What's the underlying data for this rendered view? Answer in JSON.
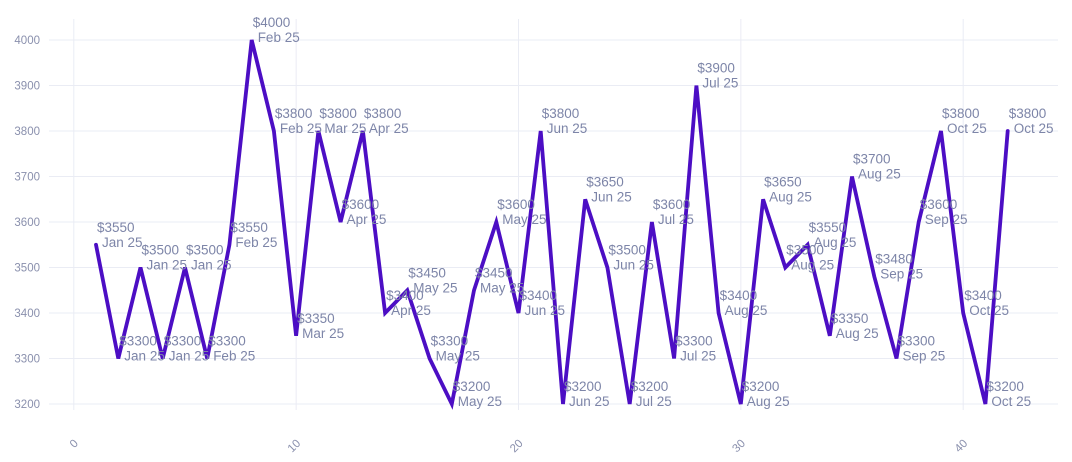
{
  "chart_data": {
    "type": "line",
    "title": "",
    "xlabel": "",
    "ylabel": "",
    "legend": "none",
    "grid": true,
    "xaxis": {
      "ticks": [
        0,
        10,
        20,
        30,
        40
      ],
      "range": [
        -1,
        44
      ]
    },
    "yaxis": {
      "ticks": [
        3200,
        3300,
        3400,
        3500,
        3600,
        3700,
        3800,
        3900,
        4000
      ],
      "range": [
        3110,
        4070
      ]
    },
    "series_name": "price",
    "points": [
      {
        "x": 1,
        "price": 3550,
        "period": "Jan 25"
      },
      {
        "x": 2,
        "price": 3300,
        "period": "Jan 25"
      },
      {
        "x": 3,
        "price": 3500,
        "period": "Jan 25"
      },
      {
        "x": 4,
        "price": 3300,
        "period": "Jan 25"
      },
      {
        "x": 5,
        "price": 3500,
        "period": "Jan 25"
      },
      {
        "x": 6,
        "price": 3300,
        "period": "Feb 25"
      },
      {
        "x": 7,
        "price": 3550,
        "period": "Feb 25"
      },
      {
        "x": 8,
        "price": 4000,
        "period": "Feb 25"
      },
      {
        "x": 9,
        "price": 3800,
        "period": "Feb 25"
      },
      {
        "x": 10,
        "price": 3350,
        "period": "Mar 25"
      },
      {
        "x": 11,
        "price": 3800,
        "period": "Mar 25"
      },
      {
        "x": 12,
        "price": 3600,
        "period": "Apr 25"
      },
      {
        "x": 13,
        "price": 3800,
        "period": "Apr 25"
      },
      {
        "x": 14,
        "price": 3400,
        "period": "Apr 25"
      },
      {
        "x": 15,
        "price": 3450,
        "period": "May 25"
      },
      {
        "x": 16,
        "price": 3300,
        "period": "May 25"
      },
      {
        "x": 17,
        "price": 3200,
        "period": "May 25"
      },
      {
        "x": 18,
        "price": 3450,
        "period": "May 25"
      },
      {
        "x": 19,
        "price": 3600,
        "period": "May 25"
      },
      {
        "x": 20,
        "price": 3400,
        "period": "Jun 25"
      },
      {
        "x": 21,
        "price": 3800,
        "period": "Jun 25"
      },
      {
        "x": 22,
        "price": 3200,
        "period": "Jun 25"
      },
      {
        "x": 23,
        "price": 3650,
        "period": "Jun 25"
      },
      {
        "x": 24,
        "price": 3500,
        "period": "Jun 25"
      },
      {
        "x": 25,
        "price": 3200,
        "period": "Jul 25"
      },
      {
        "x": 26,
        "price": 3600,
        "period": "Jul 25"
      },
      {
        "x": 27,
        "price": 3300,
        "period": "Jul 25"
      },
      {
        "x": 28,
        "price": 3900,
        "period": "Jul 25"
      },
      {
        "x": 29,
        "price": 3400,
        "period": "Aug 25"
      },
      {
        "x": 30,
        "price": 3200,
        "period": "Aug 25"
      },
      {
        "x": 31,
        "price": 3650,
        "period": "Aug 25"
      },
      {
        "x": 32,
        "price": 3500,
        "period": "Aug 25"
      },
      {
        "x": 33,
        "price": 3550,
        "period": "Aug 25"
      },
      {
        "x": 34,
        "price": 3350,
        "period": "Aug 25"
      },
      {
        "x": 35,
        "price": 3700,
        "period": "Aug 25"
      },
      {
        "x": 36,
        "price": 3480,
        "period": "Sep 25"
      },
      {
        "x": 37,
        "price": 3300,
        "period": "Sep 25"
      },
      {
        "x": 38,
        "price": 3600,
        "period": "Sep 25"
      },
      {
        "x": 39,
        "price": 3800,
        "period": "Oct 25"
      },
      {
        "x": 40,
        "price": 3400,
        "period": "Oct 25"
      },
      {
        "x": 41,
        "price": 3200,
        "period": "Oct 25"
      },
      {
        "x": 42,
        "price": 3800,
        "period": "Oct 25"
      }
    ],
    "currency_prefix": "$",
    "colors": {
      "line": "#4c0ec4",
      "data_label": "#7d85a8",
      "axis_label": "#8a90ad",
      "gridline": "#eaecf4",
      "background": "#ffffff"
    }
  }
}
